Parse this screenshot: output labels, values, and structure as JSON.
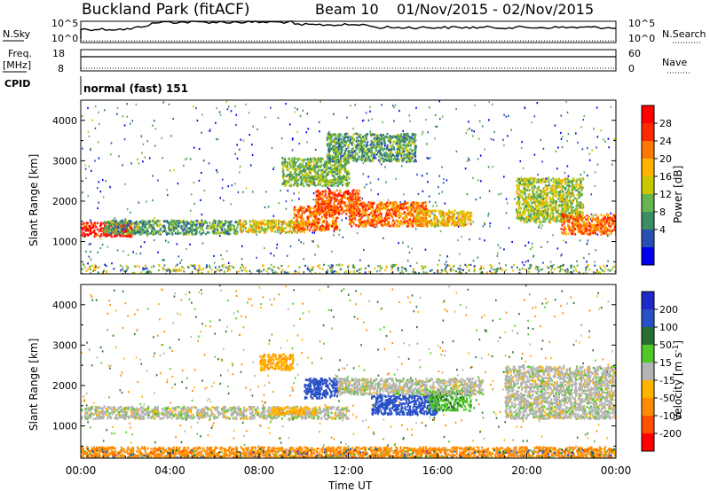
{
  "header": {
    "title": "Buckland Park (fitACF)",
    "beam": "Beam 10",
    "date_range": "01/Nov/2015 - 02/Nov/2015"
  },
  "summary_panels": {
    "nsky_label": "N.Sky",
    "nsearch_label": "N.Search",
    "noise_ticks": [
      "10^5",
      "10^0"
    ],
    "freq_label": "Freq.",
    "freq_unit": "[MHz]",
    "freq_ticks": [
      "18",
      "8"
    ],
    "nave_label": "Nave",
    "nave_ticks": [
      "60",
      "0"
    ],
    "cpid_label": "CPID",
    "cpid_value": "normal (fast) 151"
  },
  "colors": {
    "power_scale": [
      "#0000ee",
      "#2850b4",
      "#3c8c64",
      "#64b450",
      "#c8c800",
      "#ffb400",
      "#ff7800",
      "#ff2800",
      "#ff0000"
    ],
    "velocity_scale": [
      "#1e28c8",
      "#2850c8",
      "#286e32",
      "#50c828",
      "#b4b4b4",
      "#ffb400",
      "#ff8c00",
      "#ff5000",
      "#ff0000"
    ],
    "background_noise": "#c8c8c8"
  },
  "chart_data": [
    {
      "type": "heatmap",
      "panel": "power",
      "ylabel": "Slant Range [km]",
      "yticks": [
        "1000",
        "2000",
        "3000",
        "4000"
      ],
      "ylim": [
        200,
        4500
      ],
      "xlim": [
        0,
        24
      ],
      "colorbar_label": "Power [dB]",
      "colorbar_ticks": [
        "4",
        "8",
        "12",
        "16",
        "20",
        "24",
        "28"
      ],
      "colorbar_range": [
        0,
        30
      ],
      "echo_regions": [
        {
          "t0": 0,
          "t1": 2.3,
          "r0": 1150,
          "r1": 1500,
          "level": 27
        },
        {
          "t0": 1.0,
          "t1": 7.0,
          "r0": 1200,
          "r1": 1550,
          "level": 10
        },
        {
          "t0": 7.0,
          "t1": 10.0,
          "r0": 1250,
          "r1": 1550,
          "level": 16
        },
        {
          "t0": 9.5,
          "t1": 11.5,
          "r0": 1300,
          "r1": 1900,
          "level": 22
        },
        {
          "t0": 10.5,
          "t1": 12.5,
          "r0": 1700,
          "r1": 2300,
          "level": 24
        },
        {
          "t0": 12.0,
          "t1": 15.5,
          "r0": 1400,
          "r1": 2000,
          "level": 22
        },
        {
          "t0": 15.0,
          "t1": 17.5,
          "r0": 1400,
          "r1": 1800,
          "level": 18
        },
        {
          "t0": 9.0,
          "t1": 12.0,
          "r0": 2400,
          "r1": 3100,
          "level": 12
        },
        {
          "t0": 11.0,
          "t1": 15.0,
          "r0": 3000,
          "r1": 3700,
          "level": 10
        },
        {
          "t0": 19.5,
          "t1": 22.5,
          "r0": 1500,
          "r1": 2600,
          "level": 14
        },
        {
          "t0": 21.5,
          "t1": 24.0,
          "r0": 1200,
          "r1": 1700,
          "level": 22
        }
      ]
    },
    {
      "type": "heatmap",
      "panel": "velocity",
      "ylabel": "Slant Range [km]",
      "yticks": [
        "1000",
        "2000",
        "3000",
        "4000"
      ],
      "ylim": [
        200,
        4500
      ],
      "xlim": [
        0,
        24
      ],
      "xlabel": "Time UT",
      "xticks": [
        "00:00",
        "04:00",
        "08:00",
        "12:00",
        "16:00",
        "20:00",
        "00:00"
      ],
      "colorbar_label": "Velocity [m s^-1]",
      "colorbar_ticks": [
        "200",
        "100",
        "50",
        "15",
        "-15",
        "-50",
        "-100",
        "-200"
      ],
      "colorbar_range": [
        -250,
        250
      ],
      "echo_regions": [
        {
          "t0": 0,
          "t1": 12.0,
          "r0": 1200,
          "r1": 1500,
          "velocity": 0
        },
        {
          "t0": 8.5,
          "t1": 10.5,
          "r0": 1300,
          "r1": 1500,
          "velocity": -40
        },
        {
          "t0": 10.0,
          "t1": 11.5,
          "r0": 1700,
          "r1": 2200,
          "velocity": 180
        },
        {
          "t0": 8.0,
          "t1": 9.5,
          "r0": 2400,
          "r1": 2800,
          "velocity": -40
        },
        {
          "t0": 13.0,
          "t1": 16.0,
          "r0": 1300,
          "r1": 1800,
          "velocity": 160
        },
        {
          "t0": 15.5,
          "t1": 17.5,
          "r0": 1400,
          "r1": 1900,
          "velocity": 40
        },
        {
          "t0": 11.5,
          "t1": 18.0,
          "r0": 1800,
          "r1": 2200,
          "velocity": 0
        },
        {
          "t0": 19.0,
          "t1": 24.0,
          "r0": 1200,
          "r1": 2500,
          "velocity": 0
        },
        {
          "t0": 0,
          "t1": 24.0,
          "r0": 200,
          "r1": 500,
          "velocity": -80
        }
      ]
    }
  ]
}
